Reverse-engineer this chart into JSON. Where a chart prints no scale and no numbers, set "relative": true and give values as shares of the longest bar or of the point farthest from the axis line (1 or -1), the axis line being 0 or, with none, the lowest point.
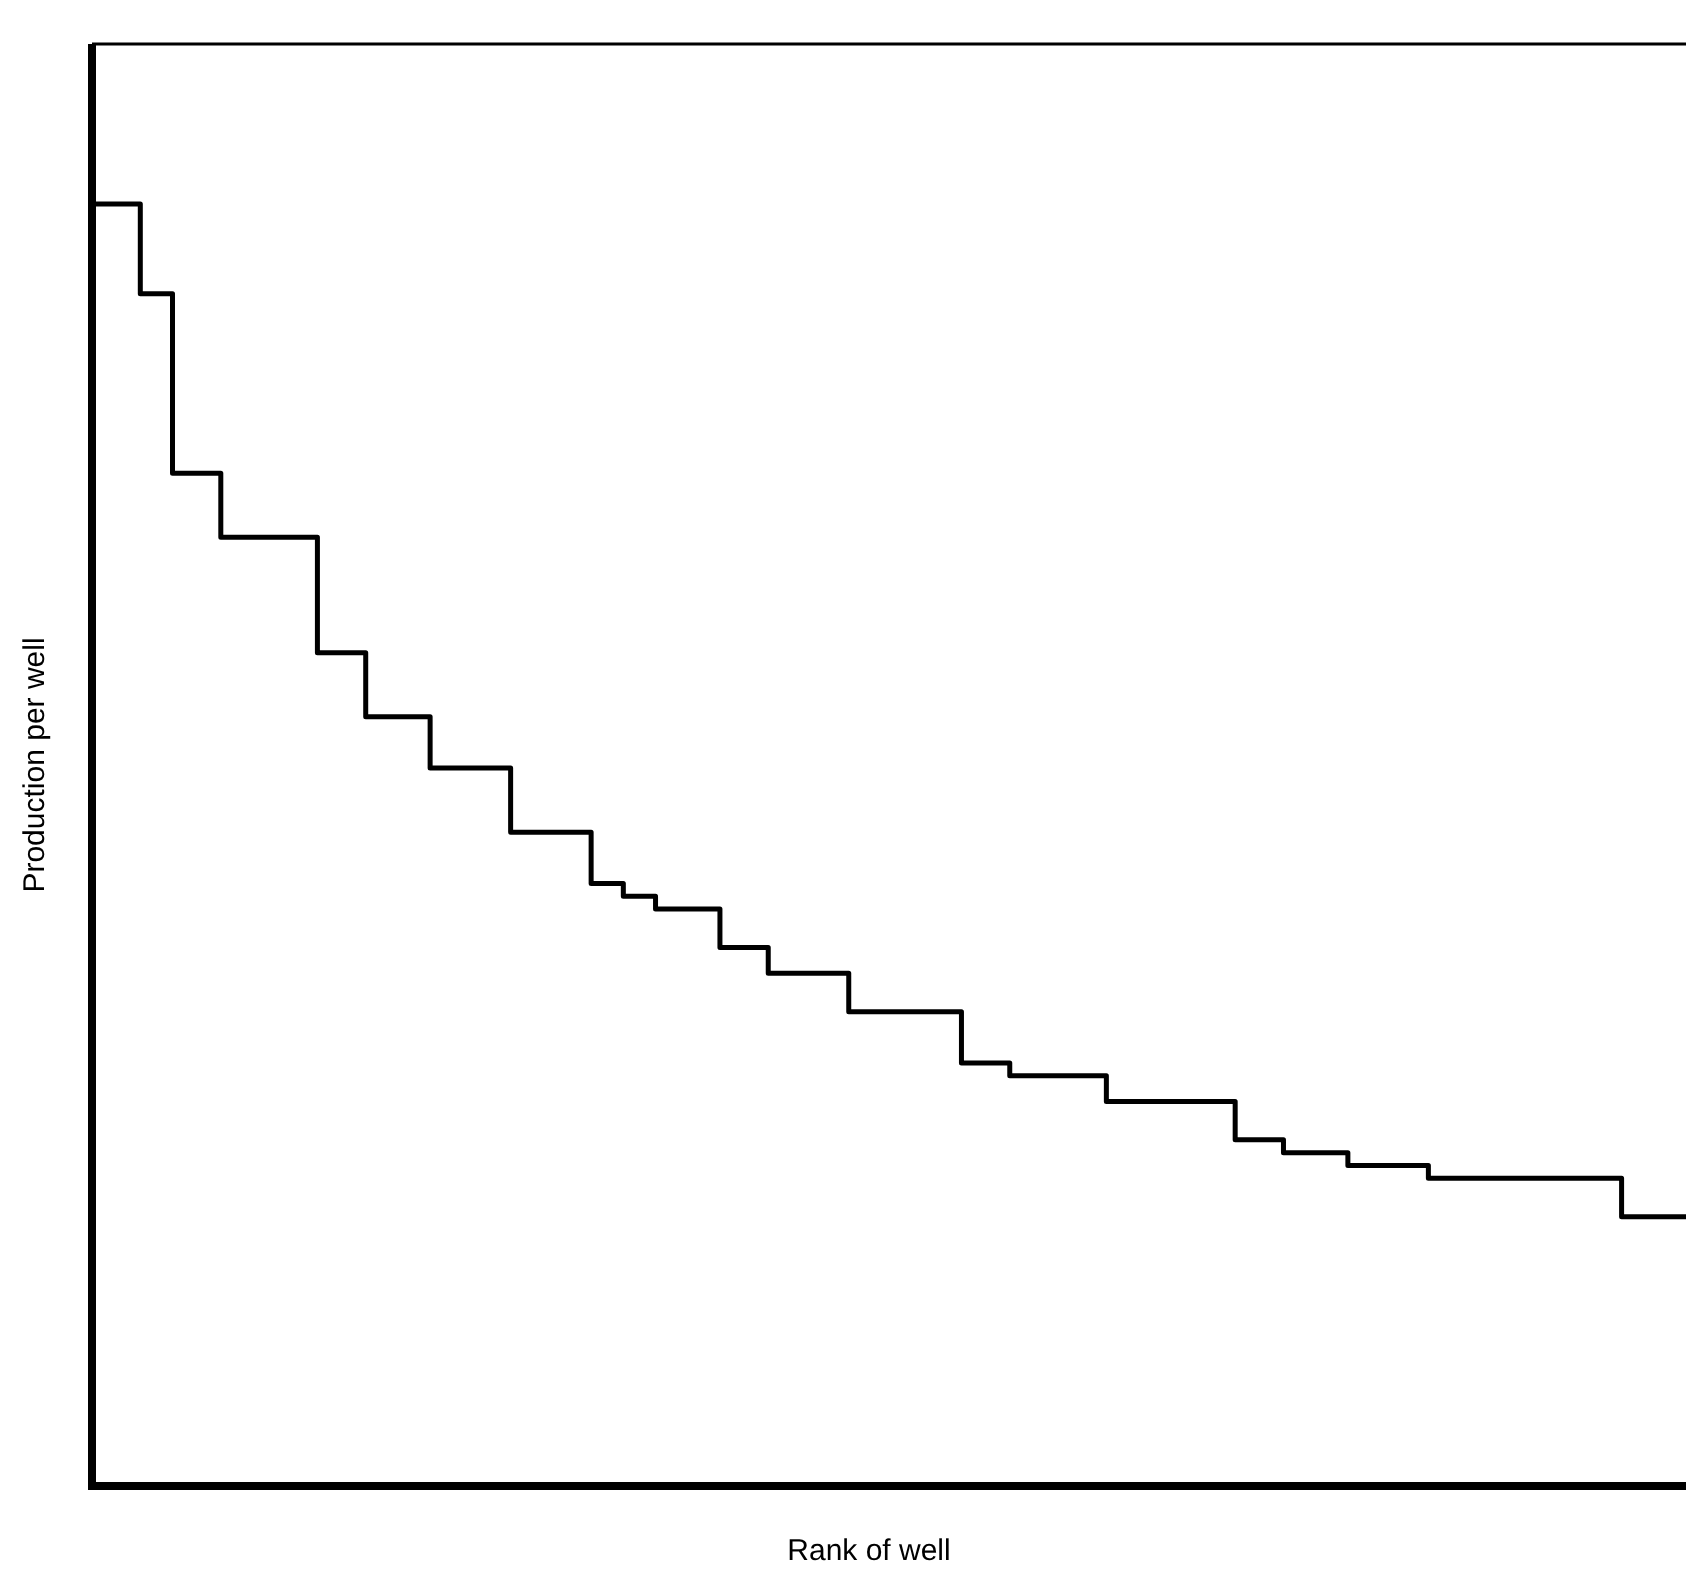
{
  "chart_data": {
    "type": "step",
    "xlabel": "Rank of well",
    "ylabel": "Production per well",
    "relative": true,
    "color": "#000000",
    "categories": [
      null,
      null,
      null,
      null,
      null,
      null,
      null,
      null,
      null,
      null,
      null,
      null,
      null,
      null,
      null,
      null,
      null,
      null,
      null,
      null,
      null,
      null,
      null,
      null,
      null,
      null,
      null,
      null,
      null,
      null,
      null,
      null,
      null,
      null,
      null,
      null,
      null,
      null,
      null,
      null,
      null,
      null,
      null,
      null,
      null,
      null,
      null,
      null,
      null,
      null,
      null,
      null,
      null,
      null,
      null,
      null,
      null,
      null,
      null,
      null,
      null,
      null,
      null,
      null,
      null,
      null,
      null,
      null,
      null,
      null,
      null,
      null,
      null,
      null,
      null,
      null,
      null,
      null,
      null,
      null,
      null,
      null,
      null,
      null,
      null,
      null,
      null,
      null,
      null,
      null,
      null,
      null,
      null,
      null,
      null,
      null,
      null,
      null,
      null,
      null
    ],
    "values": [
      1,
      1,
      1,
      0.93,
      0.93,
      0.79,
      0.79,
      0.79,
      0.74,
      0.74,
      0.74,
      0.74,
      0.74,
      0.74,
      0.65,
      0.65,
      0.65,
      0.6,
      0.6,
      0.6,
      0.6,
      0.56,
      0.56,
      0.56,
      0.56,
      0.56,
      0.51,
      0.51,
      0.51,
      0.51,
      0.51,
      0.47,
      0.47,
      0.46,
      0.46,
      0.45,
      0.45,
      0.45,
      0.45,
      0.42,
      0.42,
      0.42,
      0.4,
      0.4,
      0.4,
      0.4,
      0.4,
      0.37,
      0.37,
      0.37,
      0.37,
      0.37,
      0.37,
      0.37,
      0.33,
      0.33,
      0.33,
      0.32,
      0.32,
      0.32,
      0.32,
      0.32,
      0.32,
      0.3,
      0.3,
      0.3,
      0.3,
      0.3,
      0.3,
      0.3,
      0.3,
      0.27,
      0.27,
      0.27,
      0.26,
      0.26,
      0.26,
      0.26,
      0.25,
      0.25,
      0.25,
      0.25,
      0.25,
      0.24,
      0.24,
      0.24,
      0.24,
      0.24,
      0.24,
      0.24,
      0.24,
      0.24,
      0.24,
      0.24,
      0.24,
      0.21,
      0.21,
      0.21,
      0.21,
      0.21
    ]
  }
}
